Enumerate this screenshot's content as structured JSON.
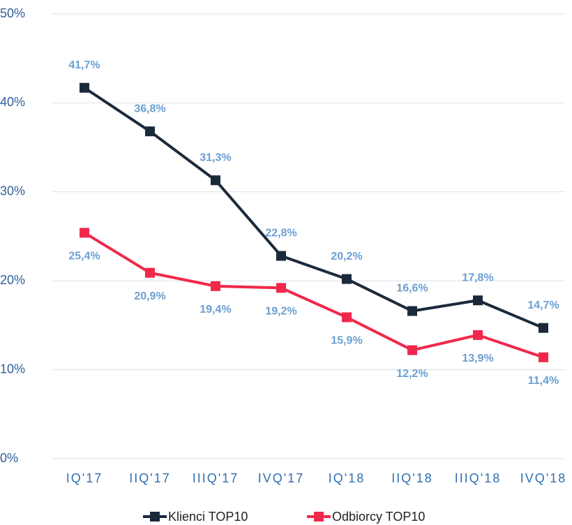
{
  "chart_data": {
    "type": "line",
    "categories": [
      "IQ'17",
      "IIQ'17",
      "IIIQ'17",
      "IVQ'17",
      "IQ'18",
      "IIQ'18",
      "IIIQ'18",
      "IVQ'18"
    ],
    "series": [
      {
        "name": "Klienci TOP10",
        "color": "#1b2a3b",
        "values": [
          41.7,
          36.8,
          31.3,
          22.8,
          20.2,
          16.6,
          17.8,
          14.7
        ],
        "value_labels": [
          "41,7%",
          "36,8%",
          "31,3%",
          "22,8%",
          "20,2%",
          "16,6%",
          "17,8%",
          "14,7%"
        ]
      },
      {
        "name": "Odbiorcy TOP10",
        "color": "#f0284a",
        "values": [
          25.4,
          20.9,
          19.4,
          19.2,
          15.9,
          12.2,
          13.9,
          11.4
        ],
        "value_labels": [
          "25,4%",
          "20,9%",
          "19,4%",
          "19,2%",
          "15,9%",
          "12,2%",
          "13,9%",
          "11,4%"
        ]
      }
    ],
    "ylim": [
      0,
      50
    ],
    "yticks": [
      {
        "value": 0,
        "label": "0%"
      },
      {
        "value": 10,
        "label": "10%"
      },
      {
        "value": 20,
        "label": "20%"
      },
      {
        "value": 30,
        "label": "30%"
      },
      {
        "value": 40,
        "label": "40%"
      },
      {
        "value": 50,
        "label": "50%"
      }
    ],
    "grid": true,
    "legend": "bottom"
  }
}
